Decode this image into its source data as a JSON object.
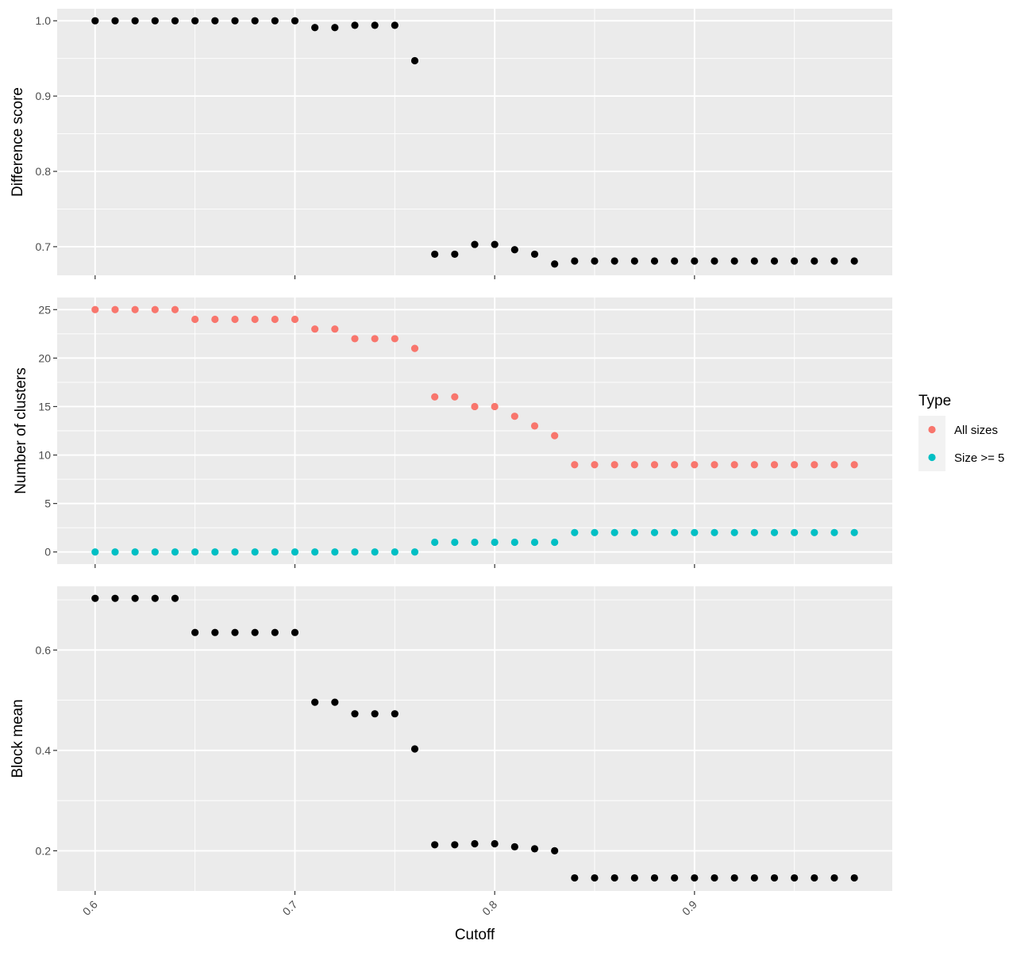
{
  "chart_data": {
    "type": "scatter",
    "shared_x": {
      "label": "Cutoff",
      "ticks": [
        0.6,
        0.7,
        0.8,
        0.9
      ],
      "tick_labels": [
        "0.6",
        "0.7",
        "0.8",
        "0.9"
      ],
      "range": [
        0.581,
        0.999
      ],
      "values": [
        0.6,
        0.61,
        0.62,
        0.63,
        0.64,
        0.65,
        0.66,
        0.67,
        0.68,
        0.69,
        0.7,
        0.71,
        0.72,
        0.73,
        0.74,
        0.75,
        0.76,
        0.77,
        0.78,
        0.79,
        0.8,
        0.81,
        0.82,
        0.83,
        0.84,
        0.85,
        0.86,
        0.87,
        0.88,
        0.89,
        0.9,
        0.91,
        0.92,
        0.93,
        0.94,
        0.95,
        0.96,
        0.97,
        0.98
      ]
    },
    "panels": [
      {
        "ylabel": "Difference score",
        "ylim": [
          0.662,
          1.016
        ],
        "yticks": [
          0.7,
          0.8,
          0.9,
          1.0
        ],
        "ytick_labels": [
          "0.7",
          "0.8",
          "0.9",
          "1.0"
        ],
        "series": [
          {
            "color": "#000000",
            "values": [
              1.0,
              1.0,
              1.0,
              1.0,
              1.0,
              1.0,
              1.0,
              1.0,
              1.0,
              1.0,
              1.0,
              0.991,
              0.991,
              0.994,
              0.994,
              0.994,
              0.947,
              0.69,
              0.69,
              0.703,
              0.703,
              0.696,
              0.69,
              0.677,
              0.681,
              0.681,
              0.681,
              0.681,
              0.681,
              0.681,
              0.681,
              0.681,
              0.681,
              0.681,
              0.681,
              0.681,
              0.681,
              0.681,
              0.681
            ]
          }
        ]
      },
      {
        "ylabel": "Number of clusters",
        "ylim": [
          -1.25,
          26.25
        ],
        "yticks": [
          0,
          5,
          10,
          15,
          20,
          25
        ],
        "ytick_labels": [
          "0",
          "5",
          "10",
          "15",
          "20",
          "25"
        ],
        "series": [
          {
            "name": "All sizes",
            "color": "#F8766D",
            "values": [
              25,
              25,
              25,
              25,
              25,
              24,
              24,
              24,
              24,
              24,
              24,
              23,
              23,
              22,
              22,
              22,
              21,
              16,
              16,
              15,
              15,
              14,
              13,
              12,
              9,
              9,
              9,
              9,
              9,
              9,
              9,
              9,
              9,
              9,
              9,
              9,
              9,
              9,
              9
            ]
          },
          {
            "name": "Size >= 5",
            "color": "#00BFC4",
            "values": [
              0,
              0,
              0,
              0,
              0,
              0,
              0,
              0,
              0,
              0,
              0,
              0,
              0,
              0,
              0,
              0,
              0,
              1,
              1,
              1,
              1,
              1,
              1,
              1,
              2,
              2,
              2,
              2,
              2,
              2,
              2,
              2,
              2,
              2,
              2,
              2,
              2,
              2,
              2
            ]
          }
        ]
      },
      {
        "ylabel": "Block mean",
        "ylim": [
          0.12,
          0.727
        ],
        "yticks": [
          0.2,
          0.4,
          0.6
        ],
        "ytick_labels": [
          "0.2",
          "0.4",
          "0.6"
        ],
        "series": [
          {
            "color": "#000000",
            "values": [
              0.703,
              0.703,
              0.703,
              0.703,
              0.703,
              0.635,
              0.635,
              0.635,
              0.635,
              0.635,
              0.635,
              0.496,
              0.496,
              0.473,
              0.473,
              0.473,
              0.403,
              0.212,
              0.212,
              0.214,
              0.214,
              0.208,
              0.204,
              0.2,
              0.146,
              0.146,
              0.146,
              0.146,
              0.146,
              0.146,
              0.146,
              0.146,
              0.146,
              0.146,
              0.146,
              0.146,
              0.146,
              0.146,
              0.146
            ]
          }
        ]
      }
    ],
    "legend": {
      "title": "Type",
      "position": "right",
      "entries": [
        {
          "label": "All sizes",
          "color": "#F8766D"
        },
        {
          "label": "Size >= 5",
          "color": "#00BFC4"
        }
      ]
    },
    "grid": true
  },
  "colors": {
    "panel_background": "#EBEBEB",
    "grid_major": "#FFFFFF",
    "legend_key_background": "#F2F2F2"
  }
}
